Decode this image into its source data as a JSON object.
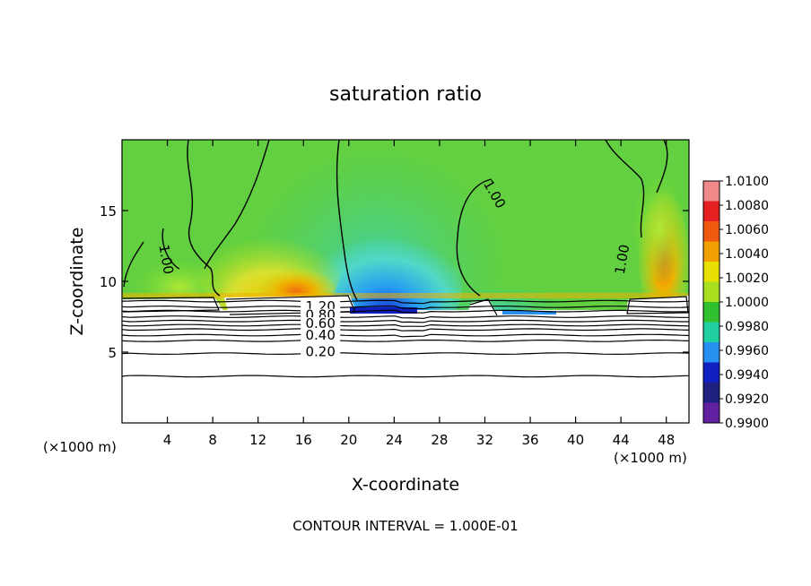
{
  "chart_data": {
    "type": "heatmap",
    "title": "saturation ratio",
    "xlabel": "X-coordinate",
    "ylabel": "Z-coordinate",
    "x_unit_left": "(×1000 m)",
    "x_unit_right": "(×1000 m)",
    "xlim": [
      0,
      50
    ],
    "ylim": [
      0,
      20
    ],
    "x_ticks": [
      4,
      8,
      12,
      16,
      20,
      24,
      28,
      32,
      36,
      40,
      44,
      48
    ],
    "y_ticks": [
      5,
      10,
      15
    ],
    "colorbar": {
      "ticks": [
        "1.0100",
        "1.0080",
        "1.0060",
        "1.0040",
        "1.0020",
        "1.0000",
        "0.9980",
        "0.9960",
        "0.9940",
        "0.9920",
        "0.9900"
      ],
      "colors": [
        "#f08a8a",
        "#e42020",
        "#f05a10",
        "#f0a000",
        "#e8e000",
        "#a8e020",
        "#30c030",
        "#20d0a0",
        "#2890f0",
        "#1020c0",
        "#202080",
        "#6020a0"
      ]
    },
    "contour_labels": [
      {
        "text": "1.00",
        "x": 3.5,
        "z": 11.5
      },
      {
        "text": "1.00",
        "x": 32.5,
        "z": 16.0
      },
      {
        "text": "1.00",
        "x": 44.5,
        "z": 11.5
      },
      {
        "text": "1.20",
        "x": 17.5,
        "z": 7.9
      },
      {
        "text": "0.80",
        "x": 17.5,
        "z": 7.3
      },
      {
        "text": "0.60",
        "x": 17.5,
        "z": 6.7
      },
      {
        "text": "0.40",
        "x": 17.5,
        "z": 5.9
      },
      {
        "text": "0.20",
        "x": 17.5,
        "z": 4.7
      }
    ],
    "lower_contour_levels_z": [
      8.6,
      8.2,
      7.9,
      7.5,
      7.2,
      6.9,
      6.6,
      6.2,
      5.8,
      4.9,
      3.3
    ]
  },
  "footer": {
    "interval_text": "CONTOUR INTERVAL = 1.000E-01"
  }
}
